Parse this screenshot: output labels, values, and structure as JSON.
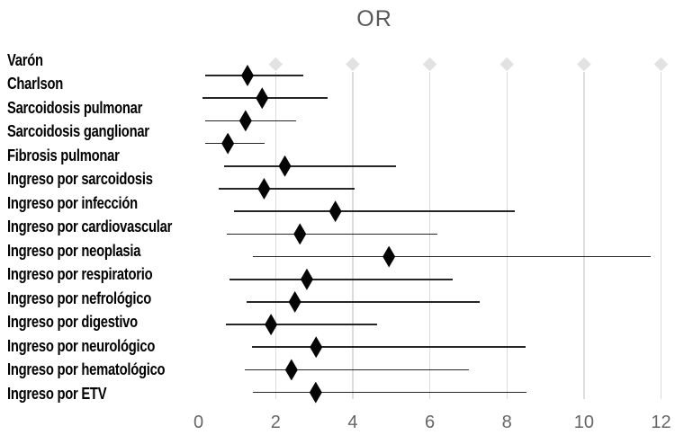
{
  "chart_data": {
    "type": "scatter",
    "variant": "forest_plot",
    "title": "OR",
    "xlabel": "",
    "ylabel": "",
    "xlim": [
      0,
      12.4
    ],
    "x_ticks": [
      0,
      2,
      4,
      6,
      8,
      10,
      12
    ],
    "grid": "vertical-light",
    "legend": "none",
    "top_axis_marker_values": [
      2,
      4,
      6,
      8,
      10,
      12
    ],
    "rows": [
      {
        "label": "Varón",
        "or": 1.27,
        "ci_low": 0.17,
        "ci_high": 2.71
      },
      {
        "label": "Charlson",
        "or": 1.65,
        "ci_low": 0.1,
        "ci_high": 3.35
      },
      {
        "label": "Sarcoidosis pulmonar",
        "or": 1.22,
        "ci_low": 0.17,
        "ci_high": 2.53
      },
      {
        "label": "Sarcoidosis ganglionar",
        "or": 0.76,
        "ci_low": 0.18,
        "ci_high": 1.72
      },
      {
        "label": "Fibrosis pulmonar",
        "or": 2.24,
        "ci_low": 0.67,
        "ci_high": 5.13
      },
      {
        "label": "Ingreso por sarcoidosis",
        "or": 1.7,
        "ci_low": 0.52,
        "ci_high": 4.05
      },
      {
        "label": "Ingreso por infección",
        "or": 3.55,
        "ci_low": 0.92,
        "ci_high": 8.21
      },
      {
        "label": "Ingreso por cardiovascular",
        "or": 2.63,
        "ci_low": 0.73,
        "ci_high": 6.19
      },
      {
        "label": "Ingreso por neoplasia",
        "or": 4.94,
        "ci_low": 1.4,
        "ci_high": 11.74
      },
      {
        "label": "Ingreso por respiratorio",
        "or": 2.81,
        "ci_low": 0.8,
        "ci_high": 6.6
      },
      {
        "label": "Ingreso por nefrológico",
        "or": 2.5,
        "ci_low": 1.25,
        "ci_high": 7.3
      },
      {
        "label": "Ingreso por digestivo",
        "or": 1.88,
        "ci_low": 0.7,
        "ci_high": 4.64
      },
      {
        "label": "Ingreso por neurológico",
        "or": 3.05,
        "ci_low": 1.39,
        "ci_high": 8.49
      },
      {
        "label": "Ingreso por hematológico",
        "or": 2.41,
        "ci_low": 1.2,
        "ci_high": 7.01
      },
      {
        "label": "Ingreso por ETV",
        "or": 3.04,
        "ci_low": 1.4,
        "ci_high": 8.51
      }
    ],
    "colors": {
      "background": "#ffffff",
      "title": "#595959",
      "tick_label": "#666666",
      "row_label": "#000000",
      "marker": "#050505",
      "ci_line": "#262626",
      "gridline": "#dcdcdc",
      "top_marker": "#e2e2e2"
    }
  }
}
